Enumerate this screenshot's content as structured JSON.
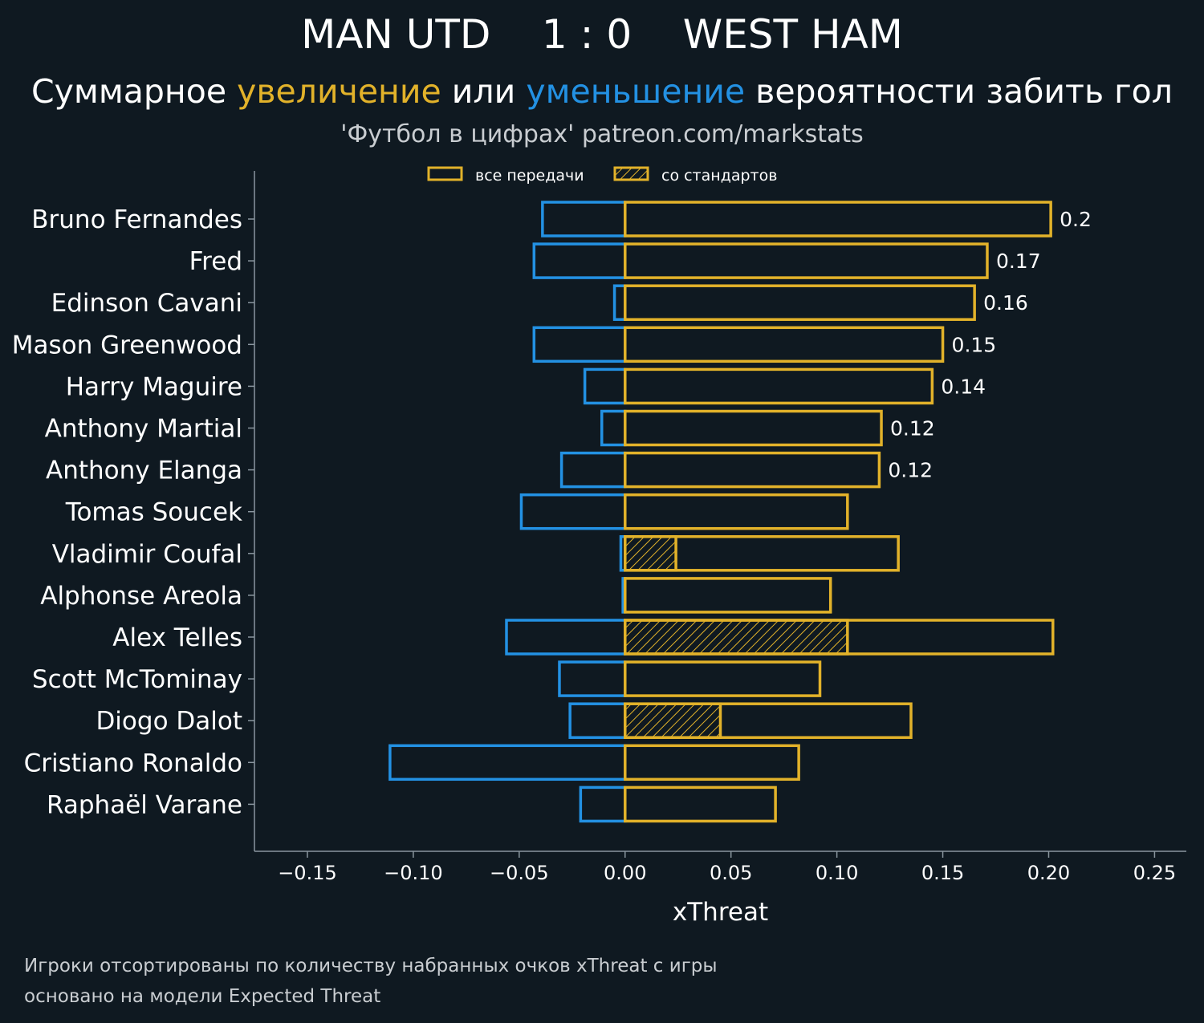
{
  "header": {
    "title": "MAN UTD    1 : 0    WEST HAM",
    "subtitle_prefix": "Суммарное ",
    "subtitle_up": "увеличение",
    "subtitle_middle": " или ",
    "subtitle_down": "уменьшение",
    "subtitle_suffix": " вероятности забить гол",
    "source": "'Футбол в цифрах' patreon.com/markstats"
  },
  "footnote": {
    "line1": "Игроки отсортированы по количеству набранных очков xThreat с игры",
    "line2": "основано на модели Expected Threat"
  },
  "colors": {
    "background": "#0f1921",
    "positive": "#e2b22a",
    "negative": "#2391e3",
    "axis": "#8a969f",
    "text": "#ffffff"
  },
  "chart_data": {
    "type": "bar",
    "orientation": "horizontal",
    "xlabel": "xThreat",
    "xlim": [
      -0.175,
      0.265
    ],
    "xticks": [
      -0.15,
      -0.1,
      -0.05,
      0.0,
      0.05,
      0.1,
      0.15,
      0.2,
      0.25
    ],
    "xtick_labels": [
      "−0.15",
      "−0.10",
      "−0.05",
      "0.00",
      "0.05",
      "0.10",
      "0.15",
      "0.20",
      "0.25"
    ],
    "legend": {
      "position": "top-center",
      "entries": [
        {
          "label": "все передачи",
          "style": "outline"
        },
        {
          "label": "со стандартов",
          "style": "hatched"
        }
      ]
    },
    "categories": [
      "Bruno Fernandes",
      "Fred",
      "Edinson Cavani",
      "Mason Greenwood",
      "Harry Maguire",
      "Anthony Martial",
      "Anthony Elanga",
      "Tomas Soucek",
      "Vladimir Coufal",
      "Alphonse Areola",
      "Alex Telles",
      "Scott McTominay",
      "Diogo Dalot",
      "Cristiano Ronaldo",
      "Raphaël Varane"
    ],
    "series": [
      {
        "name": "increase",
        "values": [
          0.201,
          0.171,
          0.165,
          0.15,
          0.145,
          0.121,
          0.12,
          0.105,
          0.129,
          0.097,
          0.202,
          0.092,
          0.135,
          0.082,
          0.071
        ]
      },
      {
        "name": "decrease",
        "values": [
          -0.039,
          -0.043,
          -0.005,
          -0.043,
          -0.019,
          -0.011,
          -0.03,
          -0.049,
          -0.002,
          -0.001,
          -0.056,
          -0.031,
          -0.026,
          -0.111,
          -0.021
        ]
      },
      {
        "name": "set_pieces",
        "values": [
          0,
          0,
          0,
          0,
          0,
          0,
          0,
          0,
          0.024,
          0,
          0.105,
          0,
          0.045,
          0,
          0
        ]
      }
    ],
    "bar_labels": [
      "0.2",
      "0.17",
      "0.16",
      "0.15",
      "0.14",
      "0.12",
      "0.12",
      "",
      "",
      "",
      "",
      "",
      "",
      "",
      ""
    ],
    "grid": false
  }
}
